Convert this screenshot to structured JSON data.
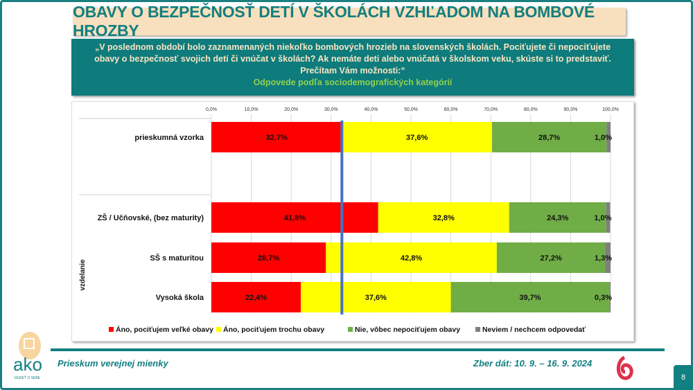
{
  "title": "OBAVY O BEZPEČNOSŤ DETÍ V ŠKOLÁCH VZHĽADOM NA BOMBOVÉ HROZBY",
  "question": "„V poslednom období bolo zaznamenaných niekoľko bombových hrozieb na slovenských školách. Pociťujete či nepociťujete obavy o bezpečnosť svojich detí či vnúčat v školách? Ak nemáte deti alebo vnúčatá v školskom veku, skúste si to predstaviť. Prečítam Vám možnosti:“",
  "subtitle": "Odpovede podľa sociodemografických kategórií",
  "footer": {
    "left": "Prieskum verejnej mienky",
    "right": "Zber dát: 10. 9. – 16. 9. 2024",
    "page": "8",
    "logo": "ako",
    "logo_tagline": "VEDIEŤ O SEBE"
  },
  "chart_data": {
    "type": "bar",
    "orientation": "horizontal",
    "stacked": true,
    "xlim": [
      0,
      100
    ],
    "ticks": [
      "0,0%",
      "10,0%",
      "20,0%",
      "30,0%",
      "40,0%",
      "50,0%",
      "60,0%",
      "70,0%",
      "80,0%",
      "90,0%",
      "100,0%"
    ],
    "group_label": "vzdelanie",
    "categories": [
      "prieskumná vzorka",
      "ZŠ / Učňovské,  (bez maturity)",
      "SŠ s maturitou",
      "Vysoká škola"
    ],
    "series": [
      {
        "name": "Áno, pociťujem veľké obavy",
        "color": "#ff0000",
        "values": [
          32.7,
          41.8,
          28.7,
          22.4
        ]
      },
      {
        "name": "Áno, pociťujem trochu obavy",
        "color": "#ffff00",
        "values": [
          37.6,
          32.8,
          42.8,
          37.6
        ]
      },
      {
        "name": "Nie, vôbec nepociťujem obavy",
        "color": "#70ad47",
        "values": [
          28.7,
          24.3,
          27.2,
          39.7
        ]
      },
      {
        "name": "Neviem / nechcem odpovedať",
        "color": "#7f7f7f",
        "values": [
          1.0,
          1.0,
          1.3,
          0.3
        ]
      }
    ],
    "reference_line": {
      "value": 32.7,
      "color": "#4472c4"
    },
    "legend": "bottom"
  }
}
